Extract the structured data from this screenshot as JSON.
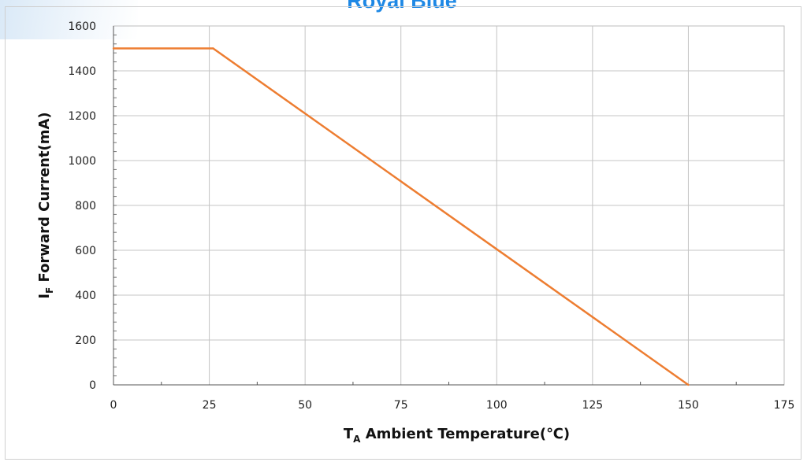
{
  "chart_data": {
    "type": "line",
    "title": "Royal Blue",
    "xlabel": "T",
    "xlabel_subscript": "A",
    "xlabel_rest": " Ambient Temperature(℃)",
    "ylabel": "I",
    "ylabel_subscript": "F",
    "ylabel_rest": " Forward Current(mA)",
    "xlim": [
      0,
      175
    ],
    "ylim": [
      0,
      1600
    ],
    "x_ticks": [
      0,
      25,
      50,
      75,
      100,
      125,
      150,
      175
    ],
    "y_ticks": [
      0,
      200,
      400,
      600,
      800,
      1000,
      1200,
      1400,
      1600
    ],
    "grid": true,
    "line_color": "#ed7d31",
    "series": [
      {
        "x": [
          0,
          26,
          150
        ],
        "y": [
          1500,
          1500,
          0
        ]
      }
    ]
  }
}
